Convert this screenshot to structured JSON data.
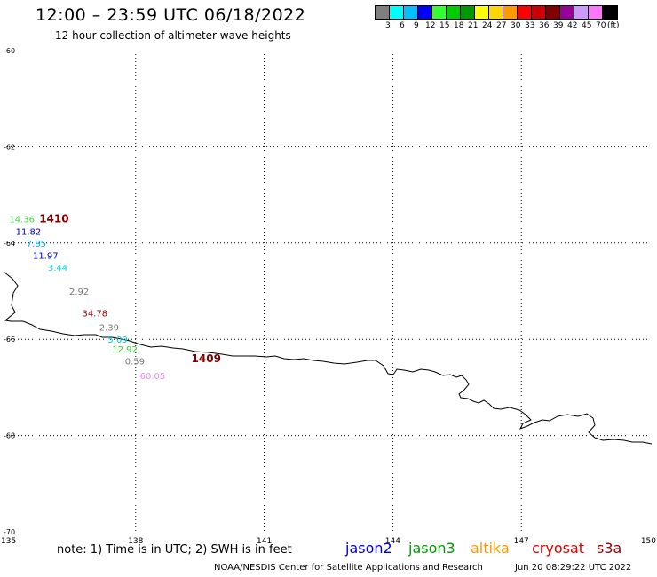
{
  "header": {
    "title": "12:00 – 23:59 UTC 06/18/2022",
    "subtitle": "12 hour collection of altimeter wave heights"
  },
  "legend": {
    "colors": [
      "#7f7f7f",
      "#00ffff",
      "#00bfff",
      "#0000ff",
      "#33ff33",
      "#00cc00",
      "#009900",
      "#ffff00",
      "#ffd700",
      "#ff9900",
      "#ff0000",
      "#cc0000",
      "#800000",
      "#990099",
      "#cc99ff",
      "#ff77ff",
      "#000000"
    ],
    "labels": [
      "3",
      "6",
      "9",
      "12",
      "15",
      "18",
      "21",
      "24",
      "27",
      "30",
      "33",
      "36",
      "39",
      "42",
      "45",
      "70"
    ],
    "unit": "(ft)"
  },
  "map": {
    "lon_ticks": [
      "135",
      "138",
      "141",
      "144",
      "147",
      "150"
    ],
    "lat_ticks": [
      "-60",
      "-62",
      "-64",
      "-66",
      "-68",
      "-70"
    ],
    "lon_range": [
      135,
      150
    ],
    "lat_range": [
      -60,
      -70
    ]
  },
  "observations": [
    {
      "text": "14.36",
      "color": "#44dd44",
      "lon": 135.05,
      "lat": -63.5
    },
    {
      "text": "1410",
      "color": "#800000",
      "lon": 135.75,
      "lat": -63.5,
      "bold": true
    },
    {
      "text": "11.82",
      "color": "#0000cc",
      "lon": 135.2,
      "lat": -63.75
    },
    {
      "text": "7.85",
      "color": "#00aaff",
      "lon": 135.45,
      "lat": -64.0
    },
    {
      "text": "11.97",
      "color": "#0000cc",
      "lon": 135.6,
      "lat": -64.25
    },
    {
      "text": "3.44",
      "color": "#00dddd",
      "lon": 135.95,
      "lat": -64.5
    },
    {
      "text": "2.92",
      "color": "#777777",
      "lon": 136.45,
      "lat": -65.0
    },
    {
      "text": "34.78",
      "color": "#990000",
      "lon": 136.75,
      "lat": -65.45
    },
    {
      "text": "2.39",
      "color": "#777777",
      "lon": 137.15,
      "lat": -65.75
    },
    {
      "text": "5.09",
      "color": "#00cccc",
      "lon": 137.35,
      "lat": -66.0
    },
    {
      "text": "12.92",
      "color": "#33cc33",
      "lon": 137.45,
      "lat": -66.2
    },
    {
      "text": "0.59",
      "color": "#777777",
      "lon": 137.75,
      "lat": -66.45
    },
    {
      "text": "1409",
      "color": "#800000",
      "lon": 139.3,
      "lat": -66.4,
      "bold": true
    },
    {
      "text": "60.05",
      "color": "#ee88ee",
      "lon": 138.1,
      "lat": -66.75
    }
  ],
  "footer": {
    "note": "note: 1) Time is in UTC; 2) SWH is in feet",
    "satellites": [
      {
        "name": "jason2",
        "color": "#0000dd"
      },
      {
        "name": "jason3",
        "color": "#009900"
      },
      {
        "name": "altika",
        "color": "#ff9900"
      },
      {
        "name": "cryosat",
        "color": "#dd0000"
      },
      {
        "name": "s3a",
        "color": "#990000"
      }
    ],
    "credit": "NOAA/NESDIS Center for Satellite Applications and Research",
    "generated": "Jun 20 08:29:22 UTC 2022"
  }
}
